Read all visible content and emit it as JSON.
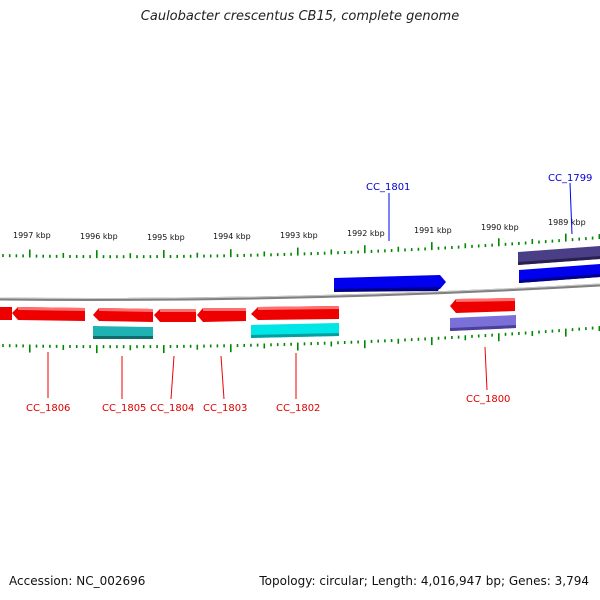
{
  "title": "Caulobacter crescentus CB15, complete genome",
  "footer": {
    "accession": "Accession: NC_002696",
    "genome_info": "Topology: circular; Length: 4,016,947 bp; Genes: 3,794"
  },
  "scale_labels": [
    "1997 kbp",
    "1996 kbp",
    "1995 kbp",
    "1994 kbp",
    "1993 kbp",
    "1992 kbp",
    "1991 kbp",
    "1990 kbp",
    "1989 kbp"
  ],
  "gene_labels": {
    "forward": [
      "CC_1801",
      "CC_1799"
    ],
    "reverse": [
      "CC_1806",
      "CC_1805",
      "CC_1804",
      "CC_1803",
      "CC_1802",
      "CC_1800"
    ]
  },
  "colors": {
    "forward_gene": "#0000ee",
    "forward_feature": "#4a3f86",
    "reverse_gene": "#ee0000",
    "reverse_feature_cyan": "#00e5e5",
    "reverse_feature_teal": "#1fb2b2",
    "reverse_feature_purple": "#7b6fd8",
    "tick": "#008800",
    "backbone": "#808080"
  }
}
